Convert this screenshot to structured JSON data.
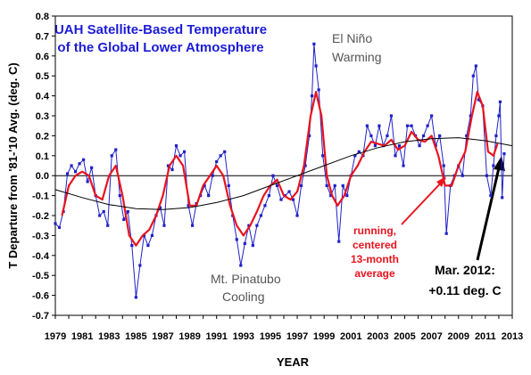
{
  "chart_data": {
    "type": "line",
    "title": [
      "UAH Satellite-Based Temperature",
      "of the Global Lower Atmosphere"
    ],
    "xlabel": "YEAR",
    "ylabel": "T Departure from '81-'10 Avg. (deg. C)",
    "xlim": [
      1979,
      2013
    ],
    "ylim": [
      -0.7,
      0.8
    ],
    "grid": false,
    "xticks": [
      "1979",
      "1981",
      "1983",
      "1985",
      "1987",
      "1989",
      "1991",
      "1993",
      "1995",
      "1997",
      "1999",
      "2001",
      "2003",
      "2005",
      "2007",
      "2009",
      "2011",
      "2013"
    ],
    "yticks": [
      "-0.7",
      "-0.6",
      "-0.5",
      "-0.4",
      "-0.3",
      "-0.2",
      "-0.1",
      "0.0",
      "0.1",
      "0.2",
      "0.3",
      "0.4",
      "0.5",
      "0.6",
      "0.7",
      "0.8"
    ],
    "colors": {
      "monthly": "#2020c8",
      "running": "#e8141e",
      "trend": "#000000"
    },
    "series": [
      {
        "key": "monthly",
        "points": [
          [
            1979.0,
            -0.24
          ],
          [
            1979.3,
            -0.26
          ],
          [
            1979.6,
            -0.18
          ],
          [
            1979.9,
            0.01
          ],
          [
            1980.2,
            0.05
          ],
          [
            1980.5,
            0.02
          ],
          [
            1980.8,
            0.06
          ],
          [
            1981.1,
            0.08
          ],
          [
            1981.4,
            -0.03
          ],
          [
            1981.7,
            0.04
          ],
          [
            1982.0,
            -0.1
          ],
          [
            1982.3,
            -0.2
          ],
          [
            1982.6,
            -0.18
          ],
          [
            1982.9,
            -0.25
          ],
          [
            1983.2,
            0.1
          ],
          [
            1983.5,
            0.13
          ],
          [
            1983.8,
            -0.1
          ],
          [
            1984.1,
            -0.22
          ],
          [
            1984.4,
            -0.18
          ],
          [
            1984.7,
            -0.35
          ],
          [
            1985.0,
            -0.61
          ],
          [
            1985.3,
            -0.45
          ],
          [
            1985.6,
            -0.3
          ],
          [
            1985.9,
            -0.35
          ],
          [
            1986.2,
            -0.3
          ],
          [
            1986.5,
            -0.2
          ],
          [
            1986.8,
            -0.16
          ],
          [
            1987.1,
            -0.25
          ],
          [
            1987.4,
            0.05
          ],
          [
            1987.7,
            0.03
          ],
          [
            1988.0,
            0.15
          ],
          [
            1988.3,
            0.1
          ],
          [
            1988.6,
            0.12
          ],
          [
            1988.9,
            -0.15
          ],
          [
            1989.2,
            -0.25
          ],
          [
            1989.5,
            -0.14
          ],
          [
            1989.8,
            -0.1
          ],
          [
            1990.1,
            -0.05
          ],
          [
            1990.4,
            -0.1
          ],
          [
            1990.7,
            0.0
          ],
          [
            1991.0,
            0.07
          ],
          [
            1991.3,
            0.1
          ],
          [
            1991.6,
            0.12
          ],
          [
            1991.9,
            -0.05
          ],
          [
            1992.2,
            -0.2
          ],
          [
            1992.5,
            -0.32
          ],
          [
            1992.8,
            -0.45
          ],
          [
            1993.1,
            -0.34
          ],
          [
            1993.4,
            -0.25
          ],
          [
            1993.7,
            -0.35
          ],
          [
            1994.0,
            -0.25
          ],
          [
            1994.3,
            -0.2
          ],
          [
            1994.6,
            -0.15
          ],
          [
            1994.9,
            -0.1
          ],
          [
            1995.2,
            0.0
          ],
          [
            1995.5,
            -0.05
          ],
          [
            1995.8,
            -0.12
          ],
          [
            1996.1,
            -0.1
          ],
          [
            1996.4,
            -0.08
          ],
          [
            1996.7,
            -0.12
          ],
          [
            1997.0,
            -0.2
          ],
          [
            1997.3,
            -0.05
          ],
          [
            1997.6,
            0.05
          ],
          [
            1997.9,
            0.2
          ],
          [
            1998.1,
            0.4
          ],
          [
            1998.25,
            0.66
          ],
          [
            1998.4,
            0.55
          ],
          [
            1998.6,
            0.43
          ],
          [
            1998.9,
            0.1
          ],
          [
            1999.2,
            -0.05
          ],
          [
            1999.5,
            -0.1
          ],
          [
            1999.8,
            -0.05
          ],
          [
            2000.1,
            -0.33
          ],
          [
            2000.4,
            -0.05
          ],
          [
            2000.7,
            -0.1
          ],
          [
            2001.0,
            0.0
          ],
          [
            2001.3,
            0.1
          ],
          [
            2001.6,
            0.12
          ],
          [
            2001.9,
            0.1
          ],
          [
            2002.2,
            0.25
          ],
          [
            2002.5,
            0.2
          ],
          [
            2002.8,
            0.15
          ],
          [
            2003.1,
            0.25
          ],
          [
            2003.4,
            0.15
          ],
          [
            2003.7,
            0.2
          ],
          [
            2004.0,
            0.3
          ],
          [
            2004.3,
            0.1
          ],
          [
            2004.6,
            0.15
          ],
          [
            2004.9,
            0.05
          ],
          [
            2005.2,
            0.25
          ],
          [
            2005.5,
            0.25
          ],
          [
            2005.8,
            0.2
          ],
          [
            2006.1,
            0.15
          ],
          [
            2006.4,
            0.2
          ],
          [
            2006.7,
            0.25
          ],
          [
            2007.0,
            0.3
          ],
          [
            2007.3,
            0.15
          ],
          [
            2007.6,
            0.2
          ],
          [
            2007.9,
            0.05
          ],
          [
            2008.1,
            -0.29
          ],
          [
            2008.4,
            -0.05
          ],
          [
            2008.7,
            0.0
          ],
          [
            2009.0,
            0.05
          ],
          [
            2009.3,
            0.0
          ],
          [
            2009.6,
            0.2
          ],
          [
            2009.9,
            0.3
          ],
          [
            2010.1,
            0.5
          ],
          [
            2010.3,
            0.55
          ],
          [
            2010.5,
            0.38
          ],
          [
            2010.8,
            0.35
          ],
          [
            2011.1,
            0.0
          ],
          [
            2011.4,
            -0.1
          ],
          [
            2011.6,
            0.05
          ],
          [
            2011.8,
            0.2
          ],
          [
            2012.0,
            0.3
          ],
          [
            2012.1,
            0.37
          ],
          [
            2012.25,
            -0.11
          ],
          [
            2012.4,
            0.11
          ]
        ]
      },
      {
        "key": "running",
        "points": [
          [
            1979.5,
            -0.2
          ],
          [
            1980.0,
            -0.05
          ],
          [
            1980.5,
            0.0
          ],
          [
            1981.0,
            0.02
          ],
          [
            1981.5,
            0.0
          ],
          [
            1982.0,
            -0.1
          ],
          [
            1982.5,
            -0.12
          ],
          [
            1983.0,
            0.0
          ],
          [
            1983.5,
            0.05
          ],
          [
            1984.0,
            -0.1
          ],
          [
            1984.5,
            -0.3
          ],
          [
            1985.0,
            -0.35
          ],
          [
            1985.5,
            -0.3
          ],
          [
            1986.0,
            -0.27
          ],
          [
            1986.5,
            -0.2
          ],
          [
            1987.0,
            -0.1
          ],
          [
            1987.5,
            0.05
          ],
          [
            1988.0,
            0.1
          ],
          [
            1988.5,
            0.05
          ],
          [
            1989.0,
            -0.15
          ],
          [
            1989.5,
            -0.15
          ],
          [
            1990.0,
            -0.05
          ],
          [
            1990.5,
            0.0
          ],
          [
            1991.0,
            0.05
          ],
          [
            1991.5,
            0.0
          ],
          [
            1992.0,
            -0.15
          ],
          [
            1992.5,
            -0.25
          ],
          [
            1993.0,
            -0.3
          ],
          [
            1993.5,
            -0.25
          ],
          [
            1994.0,
            -0.18
          ],
          [
            1994.5,
            -0.1
          ],
          [
            1995.0,
            -0.05
          ],
          [
            1995.5,
            -0.02
          ],
          [
            1996.0,
            -0.1
          ],
          [
            1996.5,
            -0.12
          ],
          [
            1997.0,
            -0.08
          ],
          [
            1997.5,
            0.05
          ],
          [
            1998.0,
            0.3
          ],
          [
            1998.4,
            0.42
          ],
          [
            1998.8,
            0.3
          ],
          [
            1999.2,
            0.0
          ],
          [
            1999.6,
            -0.1
          ],
          [
            2000.0,
            -0.15
          ],
          [
            2000.5,
            -0.1
          ],
          [
            2001.0,
            0.0
          ],
          [
            2001.5,
            0.05
          ],
          [
            2002.0,
            0.12
          ],
          [
            2002.5,
            0.17
          ],
          [
            2003.0,
            0.16
          ],
          [
            2003.5,
            0.15
          ],
          [
            2004.0,
            0.18
          ],
          [
            2004.5,
            0.13
          ],
          [
            2005.0,
            0.15
          ],
          [
            2005.5,
            0.22
          ],
          [
            2006.0,
            0.18
          ],
          [
            2006.5,
            0.17
          ],
          [
            2007.0,
            0.2
          ],
          [
            2007.5,
            0.1
          ],
          [
            2008.0,
            -0.05
          ],
          [
            2008.5,
            -0.05
          ],
          [
            2009.0,
            0.05
          ],
          [
            2009.5,
            0.12
          ],
          [
            2010.0,
            0.3
          ],
          [
            2010.4,
            0.42
          ],
          [
            2010.8,
            0.35
          ],
          [
            2011.2,
            0.12
          ],
          [
            2011.6,
            0.1
          ],
          [
            2011.9,
            0.16
          ]
        ]
      },
      {
        "key": "trend",
        "points": [
          [
            1979.0,
            -0.07
          ],
          [
            1981.0,
            -0.11
          ],
          [
            1983.0,
            -0.145
          ],
          [
            1985.0,
            -0.165
          ],
          [
            1987.0,
            -0.17
          ],
          [
            1989.0,
            -0.16
          ],
          [
            1991.0,
            -0.135
          ],
          [
            1993.0,
            -0.1
          ],
          [
            1995.0,
            -0.05
          ],
          [
            1997.0,
            0.0
          ],
          [
            1999.0,
            0.05
          ],
          [
            2001.0,
            0.1
          ],
          [
            2003.0,
            0.14
          ],
          [
            2005.0,
            0.17
          ],
          [
            2007.0,
            0.185
          ],
          [
            2009.0,
            0.19
          ],
          [
            2011.0,
            0.175
          ],
          [
            2013.0,
            0.15
          ]
        ]
      }
    ],
    "annotations": {
      "el_nino": [
        "El Niño",
        "Warming"
      ],
      "pinatubo": [
        "Mt. Pinatubo",
        "Cooling"
      ],
      "running_avg": [
        "running,",
        "centered",
        "13-month",
        "average"
      ],
      "latest": [
        "Mar. 2012:",
        "+0.11 deg. C"
      ]
    }
  }
}
